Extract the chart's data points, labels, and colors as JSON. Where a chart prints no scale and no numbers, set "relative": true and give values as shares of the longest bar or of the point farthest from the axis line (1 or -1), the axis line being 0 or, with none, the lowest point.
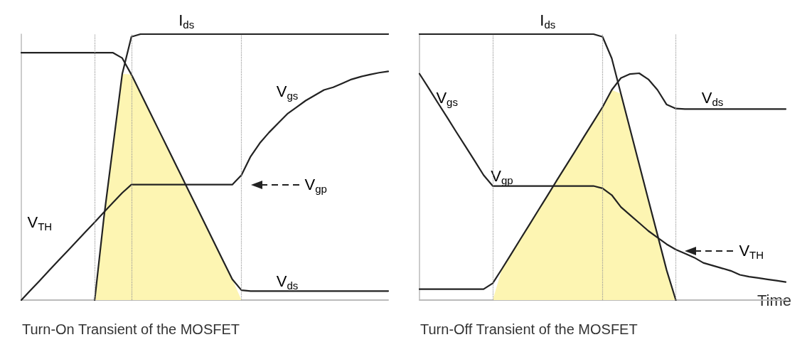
{
  "chart_data": [
    {
      "type": "line",
      "title": "Turn-On Transient of the MOSFET",
      "relative": true,
      "grid": "x",
      "marker": "none",
      "line_style": "solid",
      "categories": [
        null,
        null,
        null,
        null,
        null,
        null,
        null,
        null,
        null,
        null,
        null,
        null,
        null,
        null,
        null,
        null,
        null,
        null,
        null,
        null,
        null,
        null,
        null,
        null,
        null,
        null,
        null,
        null,
        null,
        null,
        null,
        null,
        null,
        null,
        null,
        null,
        null,
        null,
        null,
        null,
        null
      ],
      "series": [
        {
          "type": "area",
          "color": "#fdf5b2",
          "values": [
            null,
            null,
            null,
            null,
            null,
            null,
            null,
            null,
            0,
            0.31,
            0.58,
            0.85,
            0.848,
            0.778,
            0.708,
            0.638,
            0.568,
            0.498,
            0.428,
            0.358,
            0.288,
            0.218,
            0.148,
            0.078,
            0,
            null,
            null,
            null,
            null,
            null,
            null,
            null,
            null,
            null,
            null,
            null,
            null,
            null,
            null,
            null,
            null
          ]
        },
        {
          "color": "#222222",
          "values": [
            null,
            null,
            null,
            null,
            null,
            null,
            null,
            null,
            0,
            0.31,
            0.58,
            0.85,
            0.99,
            1,
            1,
            1,
            1,
            1,
            1,
            1,
            1,
            1,
            1,
            1,
            1,
            1,
            1,
            1,
            1,
            1,
            1,
            1,
            1,
            1,
            1,
            1,
            1,
            1,
            1,
            1,
            1
          ]
        },
        {
          "color": "#222222",
          "values": [
            0.93,
            0.93,
            0.93,
            0.93,
            0.93,
            0.93,
            0.93,
            0.93,
            0.93,
            0.93,
            0.93,
            0.91,
            0.848,
            0.778,
            0.708,
            0.638,
            0.568,
            0.498,
            0.428,
            0.358,
            0.288,
            0.218,
            0.148,
            0.078,
            0.037,
            0.034,
            0.034,
            0.034,
            0.034,
            0.034,
            0.034,
            0.034,
            0.034,
            0.034,
            0.034,
            0.034,
            0.034,
            0.034,
            0.034,
            0.034,
            0.034
          ]
        },
        {
          "color": "#222222",
          "values": [
            0,
            0.037,
            0.073,
            0.11,
            0.147,
            0.183,
            0.22,
            0.257,
            0.293,
            0.33,
            0.367,
            0.403,
            0.434,
            0.434,
            0.434,
            0.434,
            0.434,
            0.434,
            0.434,
            0.434,
            0.434,
            0.434,
            0.434,
            0.434,
            0.47,
            0.54,
            0.59,
            0.63,
            0.665,
            0.7,
            0.725,
            0.75,
            0.77,
            0.79,
            0.8,
            0.815,
            0.83,
            0.84,
            0.848,
            0.855,
            0.86
          ]
        }
      ],
      "annotations": [
        "I$_{ds}$",
        "V$_{gs}$",
        "V$_{TH}$",
        "V$_{ds}$",
        "V$_{gp}$"
      ]
    },
    {
      "type": "line",
      "title": "Turn-Off Transient of the MOSFET",
      "xlabel": "Time",
      "relative": true,
      "grid": "x",
      "marker": "none",
      "line_style": "solid",
      "categories": [
        null,
        null,
        null,
        null,
        null,
        null,
        null,
        null,
        null,
        null,
        null,
        null,
        null,
        null,
        null,
        null,
        null,
        null,
        null,
        null,
        null,
        null,
        null,
        null,
        null,
        null,
        null,
        null,
        null,
        null,
        null,
        null,
        null,
        null,
        null,
        null,
        null,
        null,
        null,
        null,
        null
      ],
      "series": [
        {
          "type": "area",
          "color": "#fdf5b2",
          "values": [
            null,
            null,
            null,
            null,
            null,
            null,
            null,
            null,
            0,
            0.117,
            0.172,
            0.228,
            0.283,
            0.339,
            0.394,
            0.45,
            0.505,
            0.56,
            0.616,
            0.671,
            0.726,
            0.79,
            0.776,
            0.643,
            0.51,
            0.377,
            0.245,
            0.112,
            0,
            null,
            null,
            null,
            null,
            null,
            null,
            null,
            null,
            null,
            null,
            null,
            null
          ]
        },
        {
          "color": "#222222",
          "values": [
            1,
            1,
            1,
            1,
            1,
            1,
            1,
            1,
            1,
            1,
            1,
            1,
            1,
            1,
            1,
            1,
            1,
            1,
            1,
            1,
            0.99,
            0.909,
            0.776,
            0.643,
            0.51,
            0.377,
            0.245,
            0.112,
            0,
            null,
            null,
            null,
            null,
            null,
            null,
            null,
            null,
            null,
            null,
            null,
            null
          ]
        },
        {
          "color": "#222222",
          "values": [
            0.041,
            0.041,
            0.041,
            0.041,
            0.041,
            0.041,
            0.041,
            0.041,
            0.063,
            0.117,
            0.172,
            0.228,
            0.283,
            0.339,
            0.394,
            0.45,
            0.505,
            0.56,
            0.616,
            0.671,
            0.726,
            0.79,
            0.835,
            0.85,
            0.853,
            0.83,
            0.79,
            0.735,
            0.72,
            0.718,
            0.718,
            0.718,
            0.718,
            0.718,
            0.718,
            0.718,
            0.718,
            0.718,
            0.718,
            0.718,
            0.718
          ]
        },
        {
          "color": "#222222",
          "values": [
            0.851,
            0.797,
            0.742,
            0.688,
            0.633,
            0.579,
            0.525,
            0.47,
            0.429,
            0.429,
            0.429,
            0.429,
            0.429,
            0.429,
            0.429,
            0.429,
            0.429,
            0.429,
            0.429,
            0.429,
            0.42,
            0.395,
            0.35,
            0.32,
            0.29,
            0.26,
            0.235,
            0.21,
            0.19,
            0.175,
            0.16,
            0.14,
            0.13,
            0.12,
            0.11,
            0.095,
            0.088,
            0.083,
            0.078,
            0.073,
            0.068
          ]
        }
      ],
      "annotations": [
        "I$_{ds}$",
        "V$_{gs}$",
        "V$_{gp}$",
        "V$_{ds}$",
        "V$_{TH}$"
      ]
    }
  ]
}
